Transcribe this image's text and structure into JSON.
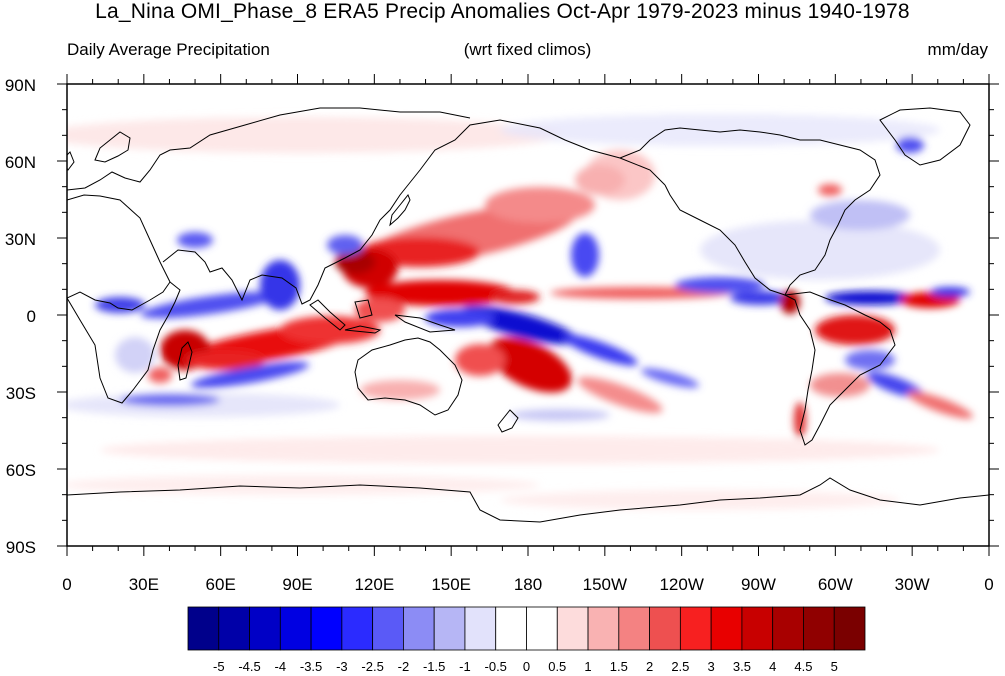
{
  "title": "La_Nina OMI_Phase_8 ERA5 Precip Anomalies Oct-Apr 1979-2023 minus 1940-1978",
  "subtitle_left": "Daily Average Precipitation",
  "subtitle_center": "(wrt fixed climos)",
  "subtitle_right": "mm/day",
  "lat_labels": [
    "90N",
    "60N",
    "30N",
    "0",
    "30S",
    "60S",
    "90S"
  ],
  "lon_labels": [
    "0",
    "30E",
    "60E",
    "90E",
    "120E",
    "150E",
    "180",
    "150W",
    "120W",
    "90W",
    "60W",
    "30W",
    "0"
  ],
  "colorbar": {
    "labels": [
      "-5",
      "-4.5",
      "-4",
      "-3.5",
      "-3",
      "-2.5",
      "-2",
      "-1.5",
      "-1",
      "-0.5",
      "0",
      "0.5",
      "1",
      "1.5",
      "2",
      "2.5",
      "3",
      "3.5",
      "4",
      "4.5",
      "5"
    ],
    "colors": [
      "#00008b",
      "#0000a8",
      "#0000c6",
      "#0000e2",
      "#0000ff",
      "#2b2bff",
      "#5a5af7",
      "#8c8cf5",
      "#b6b6f5",
      "#e2e2fb",
      "#ffffff",
      "#ffffff",
      "#fddcdc",
      "#f9b2b2",
      "#f48282",
      "#ee5050",
      "#f72020",
      "#e80000",
      "#c80000",
      "#a80000",
      "#900000",
      "#7a0000"
    ]
  },
  "projection": "cylindrical-equidistant",
  "lon_range_deg": [
    0,
    360
  ],
  "lat_range_deg": [
    -90,
    90
  ]
}
